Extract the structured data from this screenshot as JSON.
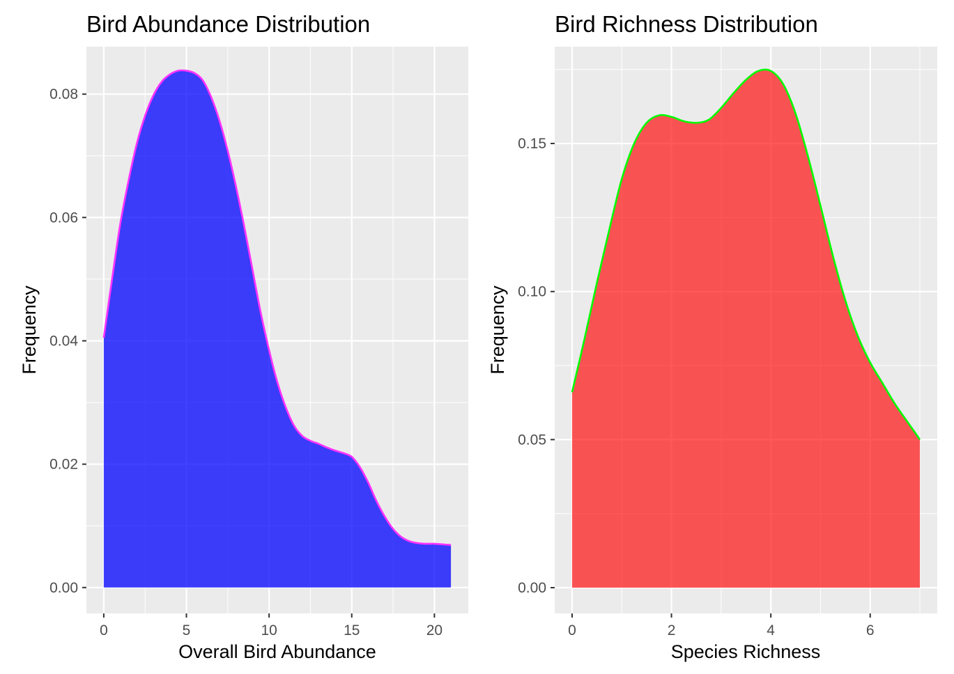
{
  "chart_data": [
    {
      "type": "area",
      "title": "Bird Abundance Distribution",
      "xlabel": "Overall Bird Abundance",
      "ylabel": "Frequency",
      "xlim": [
        -1.05,
        22.05
      ],
      "ylim": [
        -0.0042,
        0.0877
      ],
      "x_ticks": [
        0,
        5,
        10,
        15,
        20
      ],
      "x_tick_labels": [
        "0",
        "5",
        "10",
        "15",
        "20"
      ],
      "x_minor": [
        2.5,
        7.5,
        12.5,
        17.5
      ],
      "y_ticks": [
        0,
        0.02,
        0.04,
        0.06,
        0.08
      ],
      "y_tick_labels": [
        "0.00",
        "0.02",
        "0.04",
        "0.06",
        "0.08"
      ],
      "y_minor": [
        0.01,
        0.03,
        0.05,
        0.07
      ],
      "grid": true,
      "fill_color": "#0000ff",
      "fill_opacity": 0.75,
      "line_color": "#ff33ff",
      "x": [
        0,
        0.5,
        1,
        1.5,
        2,
        2.5,
        3,
        3.5,
        4,
        4.5,
        5,
        5.5,
        6,
        6.5,
        7,
        7.5,
        8,
        8.5,
        9,
        9.5,
        10,
        10.5,
        11,
        11.5,
        12,
        12.5,
        13,
        13.5,
        14,
        14.5,
        15,
        15.5,
        16,
        16.5,
        17,
        17.5,
        18,
        18.5,
        19,
        19.5,
        20,
        20.5,
        21
      ],
      "y": [
        0.0405,
        0.05,
        0.059,
        0.066,
        0.072,
        0.0765,
        0.0798,
        0.082,
        0.0832,
        0.0838,
        0.0838,
        0.0834,
        0.0822,
        0.0795,
        0.0757,
        0.0708,
        0.065,
        0.0585,
        0.0515,
        0.0445,
        0.0385,
        0.0333,
        0.0293,
        0.0263,
        0.0246,
        0.0238,
        0.0233,
        0.0227,
        0.0222,
        0.0218,
        0.0212,
        0.0195,
        0.017,
        0.014,
        0.0115,
        0.0095,
        0.0082,
        0.0075,
        0.0072,
        0.0071,
        0.0071,
        0.007,
        0.0069
      ]
    },
    {
      "type": "area",
      "title": "Bird Richness Distribution",
      "xlabel": "Species Richness",
      "ylabel": "Frequency",
      "xlim": [
        -0.35,
        7.35
      ],
      "ylim": [
        -0.0087,
        0.1827
      ],
      "x_ticks": [
        0,
        2,
        4,
        6
      ],
      "x_tick_labels": [
        "0",
        "2",
        "4",
        "6"
      ],
      "x_minor": [
        1,
        3,
        5,
        7
      ],
      "y_ticks": [
        0,
        0.05,
        0.1,
        0.15
      ],
      "y_tick_labels": [
        "0.00",
        "0.05",
        "0.10",
        "0.15"
      ],
      "y_minor": [
        0.025,
        0.075,
        0.125,
        0.175
      ],
      "grid": true,
      "fill_color": "#ff0000",
      "fill_opacity": 0.65,
      "line_color": "#00ff00",
      "x": [
        0,
        0.25,
        0.5,
        0.75,
        1,
        1.25,
        1.5,
        1.75,
        2,
        2.25,
        2.5,
        2.75,
        3,
        3.25,
        3.5,
        3.75,
        4,
        4.25,
        4.5,
        4.75,
        5,
        5.25,
        5.5,
        5.75,
        6,
        6.25,
        6.5,
        6.75,
        7
      ],
      "y": [
        0.066,
        0.084,
        0.103,
        0.121,
        0.138,
        0.15,
        0.157,
        0.1595,
        0.159,
        0.1575,
        0.157,
        0.158,
        0.162,
        0.167,
        0.1715,
        0.1745,
        0.1745,
        0.17,
        0.16,
        0.1455,
        0.129,
        0.112,
        0.097,
        0.085,
        0.076,
        0.069,
        0.062,
        0.056,
        0.05
      ]
    }
  ]
}
